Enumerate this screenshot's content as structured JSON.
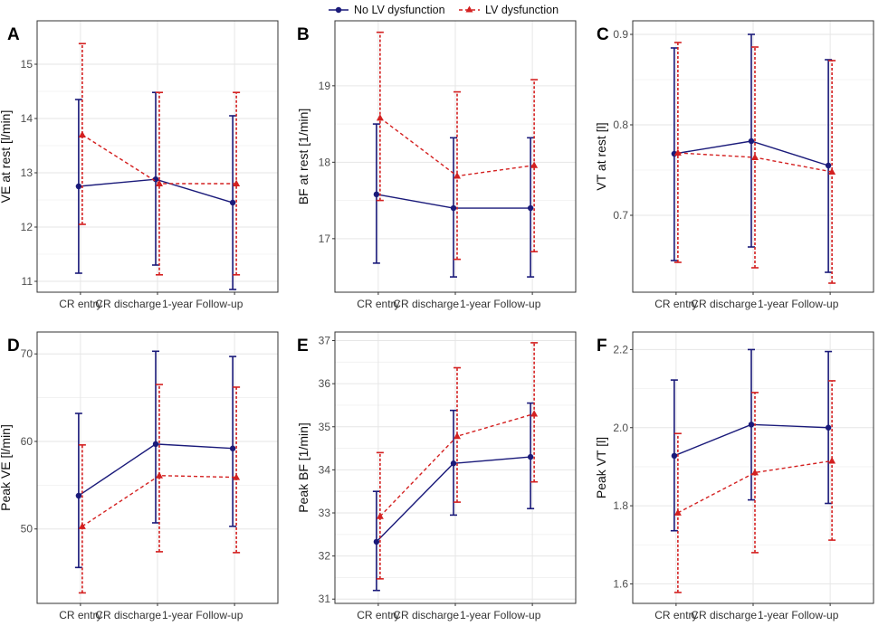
{
  "legend": {
    "items": [
      {
        "label": "No LV dysfunction",
        "color": "#1a1a7a",
        "marker": "circle",
        "line": "solid"
      },
      {
        "label": "LV dysfunction",
        "color": "#d42020",
        "marker": "triangle",
        "line": "dashed"
      }
    ],
    "placement": "top-center"
  },
  "colors": {
    "no_lv": "#1a1a7a",
    "lv": "#d42020",
    "grid": "#e6e6e6",
    "frame": "#333333"
  },
  "chart_data": [
    {
      "panel_label": "A",
      "type": "line",
      "ylabel": "VE at rest [l/min]",
      "categories": [
        "CR entry",
        "CR discharge",
        "1-year Follow-up"
      ],
      "ylim": [
        10.8,
        15.8
      ],
      "yticks": [
        11,
        12,
        13,
        14,
        15
      ],
      "series": [
        {
          "name": "No LV dysfunction",
          "values": [
            12.75,
            12.88,
            12.45
          ],
          "lower": [
            11.15,
            11.3,
            10.85
          ],
          "upper": [
            14.35,
            14.48,
            14.05
          ]
        },
        {
          "name": "LV dysfunction",
          "values": [
            13.7,
            12.8,
            12.8
          ],
          "lower": [
            12.05,
            11.12,
            11.12
          ],
          "upper": [
            15.38,
            14.48,
            14.48
          ]
        }
      ]
    },
    {
      "panel_label": "B",
      "type": "line",
      "ylabel": "BF at rest [1/min]",
      "categories": [
        "CR entry",
        "CR discharge",
        "1-year Follow-up"
      ],
      "ylim": [
        16.3,
        19.85
      ],
      "yticks": [
        17,
        18,
        19
      ],
      "series": [
        {
          "name": "No LV dysfunction",
          "values": [
            17.58,
            17.4,
            17.4
          ],
          "lower": [
            16.68,
            16.5,
            16.5
          ],
          "upper": [
            18.5,
            18.32,
            18.32
          ]
        },
        {
          "name": "LV dysfunction",
          "values": [
            18.58,
            17.82,
            17.96
          ],
          "lower": [
            17.5,
            16.73,
            16.83
          ],
          "upper": [
            19.7,
            18.92,
            19.08
          ]
        }
      ]
    },
    {
      "panel_label": "C",
      "type": "line",
      "ylabel": "VT at rest [l]",
      "categories": [
        "CR entry",
        "CR discharge",
        "1-year Follow-up"
      ],
      "ylim": [
        0.615,
        0.915
      ],
      "yticks": [
        0.7,
        0.8,
        0.9
      ],
      "series": [
        {
          "name": "No LV dysfunction",
          "values": [
            0.768,
            0.782,
            0.755
          ],
          "lower": [
            0.65,
            0.665,
            0.637
          ],
          "upper": [
            0.885,
            0.9,
            0.872
          ]
        },
        {
          "name": "LV dysfunction",
          "values": [
            0.769,
            0.764,
            0.748
          ],
          "lower": [
            0.648,
            0.642,
            0.625
          ],
          "upper": [
            0.891,
            0.886,
            0.871
          ]
        }
      ]
    },
    {
      "panel_label": "D",
      "type": "line",
      "ylabel": "Peak VE [l/min]",
      "categories": [
        "CR entry",
        "CR discharge",
        "1-year Follow-up"
      ],
      "ylim": [
        41.5,
        72.5
      ],
      "yticks": [
        50,
        60,
        70
      ],
      "series": [
        {
          "name": "No LV dysfunction",
          "values": [
            53.8,
            59.7,
            59.2
          ],
          "lower": [
            45.6,
            50.7,
            50.3
          ],
          "upper": [
            63.2,
            70.3,
            69.7
          ]
        },
        {
          "name": "LV dysfunction",
          "values": [
            50.3,
            56.1,
            55.9
          ],
          "lower": [
            42.7,
            47.4,
            47.3
          ],
          "upper": [
            59.6,
            66.5,
            66.2
          ]
        }
      ]
    },
    {
      "panel_label": "E",
      "type": "line",
      "ylabel": "Peak BF [1/min]",
      "categories": [
        "CR entry",
        "CR discharge",
        "1-year Follow-up"
      ],
      "ylim": [
        30.9,
        37.2
      ],
      "yticks": [
        31,
        32,
        33,
        34,
        35,
        36,
        37
      ],
      "series": [
        {
          "name": "No LV dysfunction",
          "values": [
            32.33,
            34.15,
            34.3
          ],
          "lower": [
            31.2,
            32.95,
            33.1
          ],
          "upper": [
            33.5,
            35.38,
            35.55
          ]
        },
        {
          "name": "LV dysfunction",
          "values": [
            32.92,
            34.78,
            35.3
          ],
          "lower": [
            31.47,
            33.25,
            33.72
          ],
          "upper": [
            34.4,
            36.37,
            36.95
          ]
        }
      ]
    },
    {
      "panel_label": "F",
      "type": "line",
      "ylabel": "Peak VT [l]",
      "categories": [
        "CR entry",
        "CR discharge",
        "1-year Follow-up"
      ],
      "ylim": [
        1.55,
        2.245
      ],
      "yticks": [
        1.6,
        1.8,
        2.0,
        2.2
      ],
      "series": [
        {
          "name": "No LV dysfunction",
          "values": [
            1.928,
            2.008,
            2.0
          ],
          "lower": [
            1.736,
            1.815,
            1.806
          ],
          "upper": [
            2.122,
            2.2,
            2.195
          ]
        },
        {
          "name": "LV dysfunction",
          "values": [
            1.782,
            1.885,
            1.915
          ],
          "lower": [
            1.578,
            1.68,
            1.712
          ],
          "upper": [
            1.985,
            2.09,
            2.12
          ]
        }
      ]
    }
  ]
}
